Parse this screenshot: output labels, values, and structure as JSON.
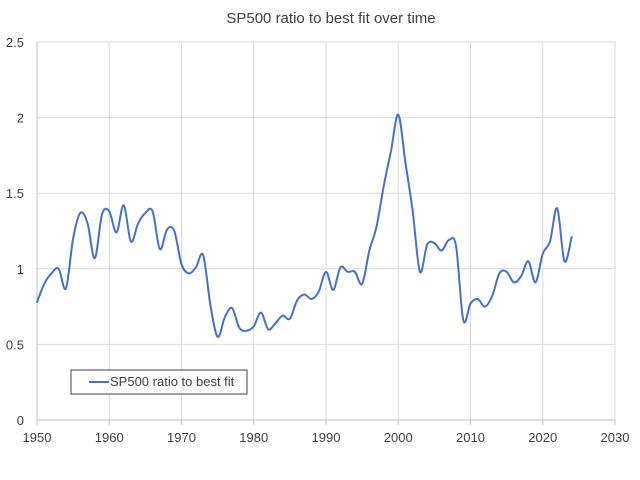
{
  "chart_data": {
    "type": "line",
    "title": "SP500 ratio to best fit over time",
    "xlabel": "",
    "ylabel": "",
    "xlim": [
      1950,
      2030
    ],
    "ylim": [
      0,
      2.5
    ],
    "x_ticks": [
      1950,
      1960,
      1970,
      1980,
      1990,
      2000,
      2010,
      2020,
      2030
    ],
    "y_ticks": [
      0,
      0.5,
      1,
      1.5,
      2,
      2.5
    ],
    "y_tick_labels": [
      "0",
      "0.5",
      "1",
      "1.5",
      "2",
      "2.5"
    ],
    "grid": true,
    "legend_position": "bottom-left",
    "series": [
      {
        "name": "SP500 ratio to best fit",
        "color": "#4472C4",
        "x": [
          1950,
          1951,
          1952,
          1953,
          1954,
          1955,
          1956,
          1957,
          1958,
          1959,
          1960,
          1961,
          1962,
          1963,
          1964,
          1965,
          1966,
          1967,
          1968,
          1969,
          1970,
          1971,
          1972,
          1973,
          1974,
          1975,
          1976,
          1977,
          1978,
          1979,
          1980,
          1981,
          1982,
          1983,
          1984,
          1985,
          1986,
          1987,
          1988,
          1989,
          1990,
          1991,
          1992,
          1993,
          1994,
          1995,
          1996,
          1997,
          1998,
          1999,
          2000,
          2001,
          2002,
          2003,
          2004,
          2005,
          2006,
          2007,
          2008,
          2009,
          2010,
          2011,
          2012,
          2013,
          2014,
          2015,
          2016,
          2017,
          2018,
          2019,
          2020,
          2021,
          2022,
          2023,
          2024
        ],
        "y": [
          0.78,
          0.9,
          0.97,
          1.0,
          0.87,
          1.2,
          1.37,
          1.3,
          1.07,
          1.36,
          1.38,
          1.24,
          1.42,
          1.18,
          1.3,
          1.37,
          1.38,
          1.13,
          1.26,
          1.25,
          1.03,
          0.97,
          1.01,
          1.09,
          0.76,
          0.55,
          0.68,
          0.74,
          0.61,
          0.59,
          0.62,
          0.71,
          0.6,
          0.64,
          0.69,
          0.67,
          0.79,
          0.83,
          0.8,
          0.85,
          0.98,
          0.86,
          1.01,
          0.98,
          0.98,
          0.9,
          1.12,
          1.28,
          1.55,
          1.78,
          2.02,
          1.7,
          1.38,
          0.98,
          1.16,
          1.17,
          1.12,
          1.19,
          1.15,
          0.66,
          0.77,
          0.8,
          0.75,
          0.82,
          0.97,
          0.98,
          0.91,
          0.95,
          1.05,
          0.91,
          1.1,
          1.18,
          1.4,
          1.05,
          1.21
        ]
      }
    ]
  }
}
